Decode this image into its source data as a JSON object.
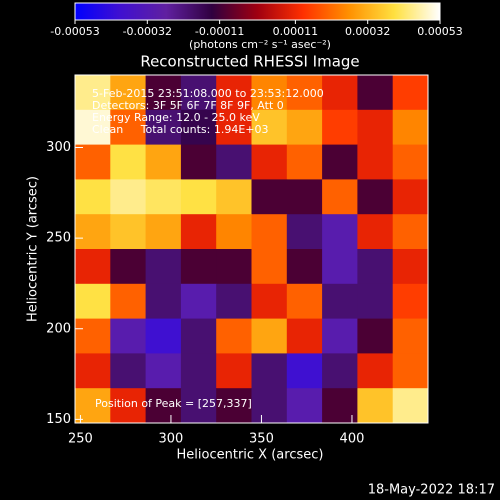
{
  "chart_data": {
    "type": "heatmap",
    "title": "Reconstructed RHESSI Image",
    "x_label": "Heliocentric X (arcsec)",
    "y_label": "Heliocentric Y (arcsec)",
    "colorbar_label": "(photons cm⁻² s⁻¹ asec⁻²)",
    "annotations": [
      "5-Feb-2015 23:51:08.000 to 23:53:12.000",
      "Detectors: 3F 5F 6F 7F 8F 9F, Att 0",
      "Energy Range: 12.0 - 25.0 keV",
      "Clean     Total counts: 1.94E+03"
    ],
    "peak_label": "Position of Peak = [257,337]",
    "timestamp": "18-May-2022 18:17",
    "xlim": [
      247,
      442
    ],
    "ylim": [
      148,
      340
    ],
    "xticks": [
      250,
      300,
      350,
      400
    ],
    "yticks": [
      150,
      200,
      250,
      300
    ],
    "clim": [
      -0.00053,
      0.00053
    ],
    "cticks": [
      -0.00053,
      -0.00032,
      -0.00011,
      0.00011,
      0.00032,
      0.00053
    ],
    "colorscale": [
      "#0000ff",
      "#4010d0",
      "#6020a0",
      "#300040",
      "#a00010",
      "#ff3000",
      "#ff9000",
      "#ffe040",
      "#ffffff"
    ],
    "z": [
      [
        0.00045,
        0.0003,
        -0.0001,
        -0.0002,
        0.0001,
        0.00025,
        0.0002,
        0.0001,
        -0.0001,
        0.00015
      ],
      [
        0.0005,
        0.0002,
        -0.0002,
        -0.00015,
        0.0001,
        0.00035,
        0.0003,
        0.00015,
        0.0001,
        0.00025
      ],
      [
        0.0002,
        0.0004,
        0.0003,
        -0.0001,
        -0.0002,
        0.0001,
        0.0002,
        -0.0001,
        0.0001,
        0.0002
      ],
      [
        0.0004,
        0.00045,
        0.00042,
        0.0004,
        0.00035,
        -0.0001,
        -0.0001,
        0.0002,
        -0.0001,
        0.0001
      ],
      [
        0.0003,
        0.00035,
        0.0003,
        0.0001,
        0.00025,
        0.0002,
        -0.0002,
        -0.0003,
        0.0001,
        0.0002
      ],
      [
        0.0001,
        -0.0001,
        -0.0002,
        -0.0001,
        -0.0001,
        0.0002,
        -0.0001,
        -0.0003,
        -0.0002,
        0.0001
      ],
      [
        0.0004,
        0.0002,
        -0.0002,
        -0.0003,
        -0.0002,
        0.0001,
        0.0002,
        -0.0002,
        -0.0002,
        0.00015
      ],
      [
        0.0002,
        -0.0003,
        -0.0004,
        -0.0002,
        0.0002,
        0.0003,
        0.0001,
        -0.0003,
        -0.0001,
        0.0002
      ],
      [
        0.0001,
        -0.0002,
        -0.0003,
        -0.0002,
        0.0001,
        -0.0002,
        -0.0004,
        -0.0002,
        0.0001,
        0.0002
      ],
      [
        0.0003,
        0.0001,
        -0.0001,
        -0.0002,
        -0.0001,
        -0.0002,
        -0.0003,
        -0.0001,
        0.00035,
        0.00045
      ]
    ]
  }
}
